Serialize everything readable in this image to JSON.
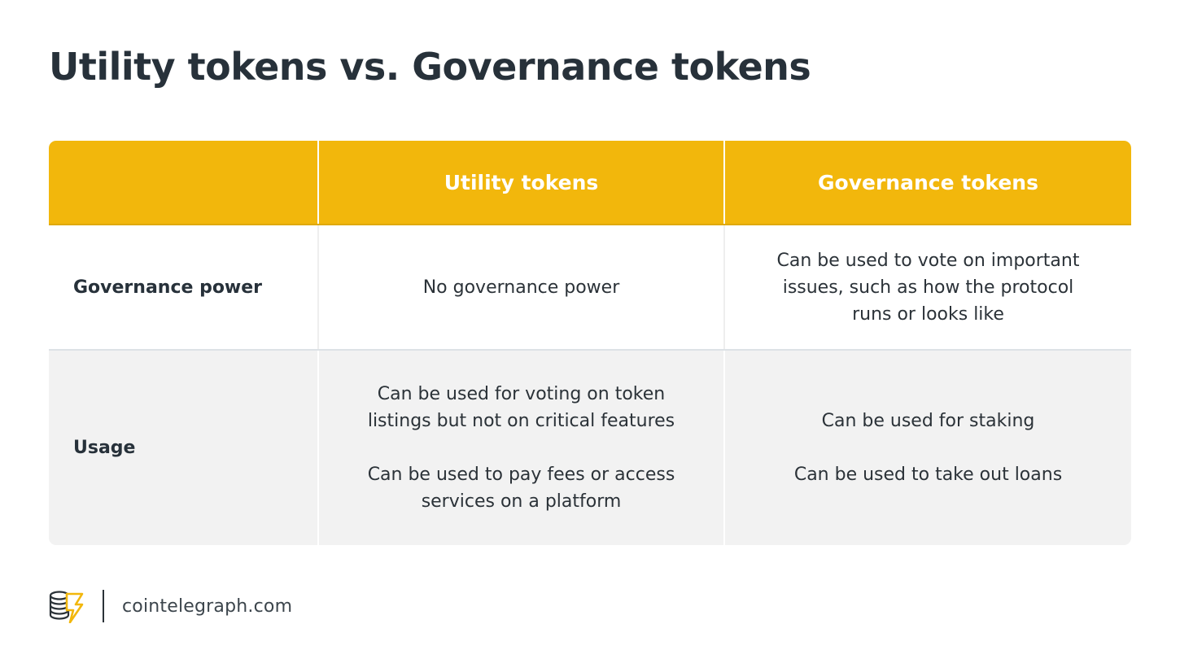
{
  "title": "Utility tokens vs. Governance tokens",
  "table": {
    "headers": [
      "",
      "Utility tokens",
      "Governance tokens"
    ],
    "rows": [
      {
        "label": "Governance power",
        "utility": [
          "No governance power"
        ],
        "governance": [
          "Can be used to vote on important",
          "issues, such as how the protocol",
          "runs or looks like"
        ]
      },
      {
        "label": "Usage",
        "utility": [
          "Can be used for voting on token",
          "listings but not on critical features",
          "",
          "Can be used to pay fees or access",
          "services on a platform"
        ],
        "governance": [
          "Can be used for staking",
          "",
          "Can be used to take out loans"
        ]
      }
    ]
  },
  "footer": {
    "logo_icon": "cointelegraph-logo-icon",
    "site": "cointelegraph.com"
  },
  "colors": {
    "header_bg": "#f2b70c",
    "alt_row_bg": "#f2f2f2",
    "text": "#27313a"
  }
}
